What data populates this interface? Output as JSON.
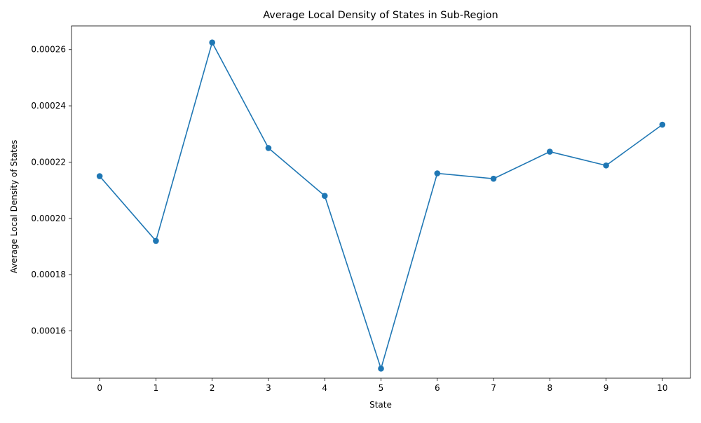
{
  "chart_data": {
    "type": "line",
    "title": "Average Local Density of States in Sub-Region",
    "xlabel": "State",
    "ylabel": "Average Local Density of States",
    "x": [
      0,
      1,
      2,
      3,
      4,
      5,
      6,
      7,
      8,
      9,
      10
    ],
    "xticks": [
      "0",
      "1",
      "2",
      "3",
      "4",
      "5",
      "6",
      "7",
      "8",
      "9",
      "10"
    ],
    "yticks": [
      "0.00016",
      "0.00018",
      "0.00020",
      "0.00022",
      "0.00024",
      "0.00026"
    ],
    "ytick_values": [
      0.00016,
      0.00018,
      0.0002,
      0.00022,
      0.00024,
      0.00026
    ],
    "xlim": [
      -0.5,
      10.5
    ],
    "ylim": [
      0.0001432,
      0.0002684
    ],
    "series": [
      {
        "values": [
          0.000215,
          0.000192,
          0.0002625,
          0.000225,
          0.000208,
          0.0001466,
          0.000216,
          0.0002141,
          0.0002237,
          0.0002188,
          0.0002333
        ],
        "color": "#1f77b4",
        "marker": "circle"
      }
    ],
    "grid": false,
    "legend": "none"
  }
}
